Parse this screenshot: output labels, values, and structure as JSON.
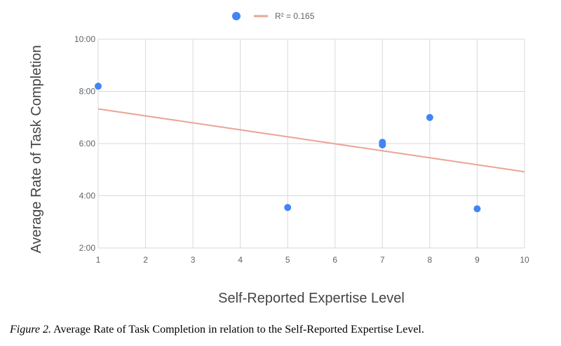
{
  "chart_data": {
    "type": "scatter",
    "xlabel": "Self-Reported Expertise Level",
    "ylabel": "Average Rate of Task Completion",
    "xlim": [
      1,
      10
    ],
    "ylim": [
      2,
      10
    ],
    "x_ticks": [
      "1",
      "2",
      "3",
      "4",
      "5",
      "6",
      "7",
      "8",
      "9",
      "10"
    ],
    "y_ticks": [
      {
        "value": 2,
        "label": "2:00"
      },
      {
        "value": 4,
        "label": "4:00"
      },
      {
        "value": 6,
        "label": "6:00"
      },
      {
        "value": 8,
        "label": "8:00"
      },
      {
        "value": 10,
        "label": "10:00"
      }
    ],
    "grid": true,
    "legend_position": "top",
    "point_color": "#4285F4",
    "series": [
      {
        "points": [
          {
            "x": 1,
            "y": 8.2
          },
          {
            "x": 5,
            "y": 3.55
          },
          {
            "x": 7,
            "y": 6.05
          },
          {
            "x": 7,
            "y": 5.95
          },
          {
            "x": 8,
            "y": 7.0
          },
          {
            "x": 9,
            "y": 3.5
          }
        ]
      }
    ],
    "trendline": {
      "label": "R² = 0.165",
      "color": "#EAA596",
      "start": {
        "x": 1,
        "y": 7.33
      },
      "end": {
        "x": 10,
        "y": 4.92
      }
    }
  },
  "caption": {
    "label": "Figure 2.",
    "text": " Average Rate of Task Completion in relation to the Self-Reported Expertise Level."
  }
}
